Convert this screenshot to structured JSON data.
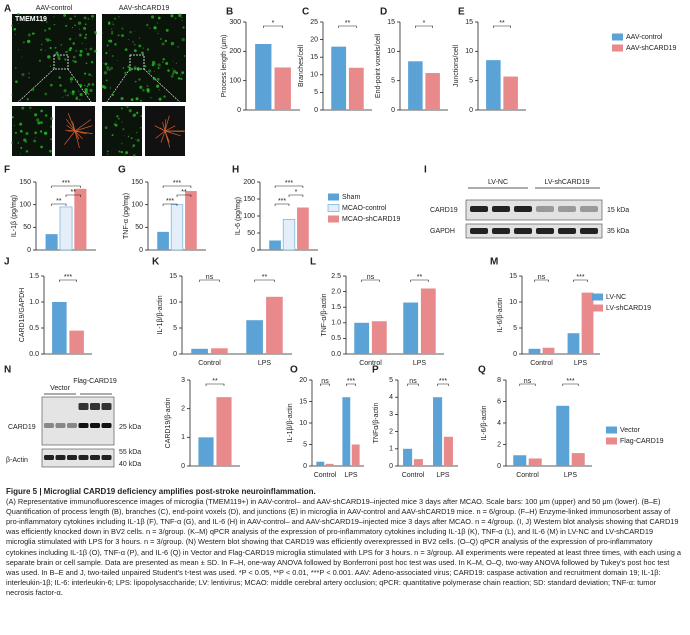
{
  "panels": {
    "A": {
      "label": "A",
      "stain": "TMEM119",
      "groups": [
        "AAV-control",
        "AAV-shCARD19"
      ]
    },
    "I": {
      "label": "I",
      "groups": [
        "LV-NC",
        "LV-shCARD19"
      ],
      "rows": [
        "CARD19",
        "GAPDH"
      ],
      "sizes": [
        "15 kDa",
        "35 kDa"
      ]
    },
    "N": {
      "label": "N",
      "groups": [
        "Vector",
        "Flag-CARD19"
      ],
      "rows": [
        "CARD19",
        "β-Actin"
      ],
      "sizes": [
        "25 kDa",
        "55 kDa",
        "40 kDa"
      ]
    }
  },
  "chart_data": [
    {
      "type": "bar",
      "label": "B",
      "ylabel": "Process length (μm)",
      "series": [
        {
          "color": "#5ba3d6",
          "values": [
            225
          ]
        },
        {
          "color": "#e8898c",
          "values": [
            145
          ]
        }
      ],
      "ylim": [
        0,
        300
      ],
      "yticks": [
        0,
        100,
        200,
        300
      ],
      "annotations": [
        "*"
      ]
    },
    {
      "type": "bar",
      "label": "C",
      "ylabel": "Branches/cell",
      "series": [
        {
          "color": "#5ba3d6",
          "values": [
            18
          ]
        },
        {
          "color": "#e8898c",
          "values": [
            12
          ]
        }
      ],
      "ylim": [
        0,
        25
      ],
      "yticks": [
        0,
        5,
        10,
        15,
        20,
        25
      ],
      "annotations": [
        "**"
      ]
    },
    {
      "type": "bar",
      "label": "D",
      "ylabel": "End-point voxels/cell",
      "series": [
        {
          "color": "#5ba3d6",
          "values": [
            8.3
          ]
        },
        {
          "color": "#e8898c",
          "values": [
            6.3
          ]
        }
      ],
      "ylim": [
        0,
        15
      ],
      "yticks": [
        0,
        5,
        10,
        15
      ],
      "annotations": [
        "*"
      ]
    },
    {
      "type": "bar",
      "label": "E",
      "ylabel": "Junctions/cell",
      "series": [
        {
          "name": "AAV-control",
          "color": "#5ba3d6",
          "values": [
            8.5
          ]
        },
        {
          "name": "AAV-shCARD19",
          "color": "#e8898c",
          "values": [
            5.7
          ]
        }
      ],
      "ylim": [
        0,
        15
      ],
      "yticks": [
        0,
        5,
        10,
        15
      ],
      "annotations": [
        "**"
      ]
    },
    {
      "type": "bar",
      "label": "F",
      "ylabel": "IL-1β (pg/mg)",
      "series": [
        {
          "color": "#5ba3d6",
          "values": [
            35
          ]
        },
        {
          "color": "#e3eef8",
          "values": [
            95
          ]
        },
        {
          "color": "#e8898c",
          "values": [
            135
          ]
        }
      ],
      "ylim": [
        0,
        150
      ],
      "yticks": [
        0,
        50,
        100,
        150
      ],
      "annotations": [
        "**",
        "**",
        "***"
      ]
    },
    {
      "type": "bar",
      "label": "G",
      "ylabel": "TNF-α (pg/mg)",
      "series": [
        {
          "color": "#5ba3d6",
          "values": [
            40
          ]
        },
        {
          "color": "#e3eef8",
          "values": [
            100
          ]
        },
        {
          "color": "#e8898c",
          "values": [
            130
          ]
        }
      ],
      "ylim": [
        0,
        150
      ],
      "yticks": [
        0,
        50,
        100,
        150
      ],
      "annotations": [
        "***",
        "**",
        "***"
      ]
    },
    {
      "type": "bar",
      "label": "H",
      "ylabel": "IL-6 (pg/mg)",
      "series": [
        {
          "name": "Sham",
          "color": "#5ba3d6",
          "values": [
            28
          ]
        },
        {
          "name": "MCAO-control",
          "color": "#e3eef8",
          "values": [
            90
          ]
        },
        {
          "name": "MCAO-shCARD19",
          "color": "#e8898c",
          "values": [
            125
          ]
        }
      ],
      "ylim": [
        0,
        200
      ],
      "yticks": [
        0,
        50,
        100,
        150,
        200
      ],
      "annotations": [
        "***",
        "*",
        "***"
      ]
    },
    {
      "type": "bar",
      "label": "J",
      "ylabel": "CARD19/GAPDH",
      "series": [
        {
          "color": "#5ba3d6",
          "values": [
            1.0
          ]
        },
        {
          "color": "#e8898c",
          "values": [
            0.45
          ]
        }
      ],
      "ylim": [
        0,
        1.5
      ],
      "yticks": [
        {
          "value": 0,
          "label": "0.0"
        },
        {
          "value": 0.5,
          "label": "0.5"
        },
        {
          "value": 1,
          "label": "1.0"
        },
        {
          "value": 1.5,
          "label": "1.5"
        }
      ],
      "annotations": [
        "***"
      ]
    },
    {
      "type": "bar",
      "label": "K",
      "ylabel": "IL-1β/β-actin",
      "categories": [
        "Control",
        "LPS"
      ],
      "series": [
        {
          "color": "#5ba3d6",
          "values": [
            1.0,
            6.5
          ]
        },
        {
          "color": "#e8898c",
          "values": [
            1.1,
            11
          ]
        }
      ],
      "ylim": [
        0,
        15
      ],
      "yticks": [
        0,
        5,
        10,
        15
      ],
      "annotations": [
        "ns",
        "**"
      ]
    },
    {
      "type": "bar",
      "label": "L",
      "ylabel": "TNF-α/β-actin",
      "categories": [
        "Control",
        "LPS"
      ],
      "series": [
        {
          "color": "#5ba3d6",
          "values": [
            1.0,
            1.65
          ]
        },
        {
          "color": "#e8898c",
          "values": [
            1.05,
            2.1
          ]
        }
      ],
      "ylim": [
        0,
        2.5
      ],
      "yticks": [
        {
          "value": 0,
          "label": "0.0"
        },
        {
          "value": 0.5,
          "label": "0.5"
        },
        {
          "value": 1,
          "label": "1.0"
        },
        {
          "value": 1.5,
          "label": "1.5"
        },
        {
          "value": 2,
          "label": "2.0"
        },
        {
          "value": 2.5,
          "label": "2.5"
        }
      ],
      "annotations": [
        "ns",
        "**"
      ]
    },
    {
      "type": "bar",
      "label": "M",
      "ylabel": "IL-6/β-actin",
      "categories": [
        "Control",
        "LPS"
      ],
      "series": [
        {
          "name": "LV-NC",
          "color": "#5ba3d6",
          "values": [
            1.0,
            4.0
          ]
        },
        {
          "name": "LV-shCARD19",
          "color": "#e8898c",
          "values": [
            1.2,
            11.8
          ]
        }
      ],
      "ylim": [
        0,
        15
      ],
      "yticks": [
        0,
        5,
        10,
        15
      ],
      "annotations": [
        "ns",
        "***"
      ]
    },
    {
      "type": "bar",
      "ylabel": "CARD19/β-actin",
      "series": [
        {
          "color": "#5ba3d6",
          "values": [
            1.0
          ]
        },
        {
          "color": "#e8898c",
          "values": [
            2.4
          ]
        }
      ],
      "ylim": [
        0,
        3
      ],
      "yticks": [
        0,
        1,
        2,
        3
      ],
      "annotations": [
        "**"
      ]
    },
    {
      "type": "bar",
      "label": "O",
      "ylabel": "IL-1β/β-actin",
      "categories": [
        "Control",
        "LPS"
      ],
      "series": [
        {
          "color": "#5ba3d6",
          "values": [
            1.0,
            16
          ]
        },
        {
          "color": "#e8898c",
          "values": [
            0.5,
            5
          ]
        }
      ],
      "ylim": [
        0,
        20
      ],
      "yticks": [
        0,
        5,
        10,
        15,
        20
      ],
      "annotations": [
        "ns",
        "***"
      ]
    },
    {
      "type": "bar",
      "label": "P",
      "ylabel": "TNFα/β-actin",
      "categories": [
        "Control",
        "LPS"
      ],
      "series": [
        {
          "color": "#5ba3d6",
          "values": [
            1.0,
            4.0
          ]
        },
        {
          "color": "#e8898c",
          "values": [
            0.4,
            1.7
          ]
        }
      ],
      "ylim": [
        0,
        5
      ],
      "yticks": [
        0,
        1,
        2,
        3,
        4,
        5
      ],
      "annotations": [
        "ns",
        "***"
      ]
    },
    {
      "type": "bar",
      "label": "Q",
      "ylabel": "IL-6/β-actin",
      "categories": [
        "Control",
        "LPS"
      ],
      "series": [
        {
          "name": "Vector",
          "color": "#5ba3d6",
          "values": [
            1.0,
            5.6
          ]
        },
        {
          "name": "Flag-CARD19",
          "color": "#e8898c",
          "values": [
            0.7,
            1.2
          ]
        }
      ],
      "ylim": [
        0,
        8
      ],
      "yticks": [
        0,
        2,
        4,
        6,
        8
      ],
      "annotations": [
        "ns",
        "***"
      ]
    }
  ],
  "caption": {
    "title": "Figure 5 |",
    "heading": "Microglial CARD19 deficiency amplifies post-stroke neuroinflammation.",
    "text": "(A) Representative immunofluorescence images of microglia (TMEM119+) in AAV-control– and AAV-shCARD19–injected mice 3 days after MCAO. Scale bars: 100 μm (upper) and 50 μm (lower). (B–E) Quantification of process length (B), branches (C), end-point voxels (D), and junctions (E) in microglia in AAV-control and AAV-shCARD19 mice. n = 6/group. (F–H) Enzyme-linked immunosorbent assay of pro-inflammatory cytokines including IL-1β (F), TNF-α (G), and IL-6 (H) in AAV-control– and AAV-shCARD19–injected mice 3 days after MCAO. n = 4/group. (I, J) Western blot analysis showing that CARD19 was efficiently knocked down in BV2 cells. n = 3/group. (K–M) qPCR analysis of the expression of pro-inflammatory cytokines including IL-1β (K), TNF-α (L), and IL-6 (M) in LV-NC and LV-shCARD19 microglia stimulated with LPS for 3 hours. n = 3/group. (N) Western blot showing that CARD19 was efficiently overexpressed in BV2 cells. (O–Q) qPCR analysis of the expression of pro-inflammatory cytokines including IL-1β (O), TNF-α (P), and IL-6 (Q) in Vector and Flag-CARD19 microglia stimulated with LPS for 3 hours. n = 3/group. All experiments were repeated at least three times, with each using a separate brain or cell sample. Data are presented as mean ± SD. In F–H, one-way ANOVA followed by Bonferroni post hoc test was used. In K–M, O–Q, two-way ANOVA followed by Tukey's post hoc test was used. In B–E and J, two-tailed unpaired Student's t-test was used. *P < 0.05, **P < 0.01, ***P < 0.001. AAV: Adeno-associated virus; CARD19: caspase activation and recruitment domain 19; IL-1β: interleukin-1β; IL-6: interleukin-6; LPS: lipopolysaccharide; LV: lentivirus; MCAO: middle cerebral artery occlusion; qPCR: quantitative polymerase chain reaction; SD: standard deviation; TNF-α: tumor necrosis factor-α."
  }
}
